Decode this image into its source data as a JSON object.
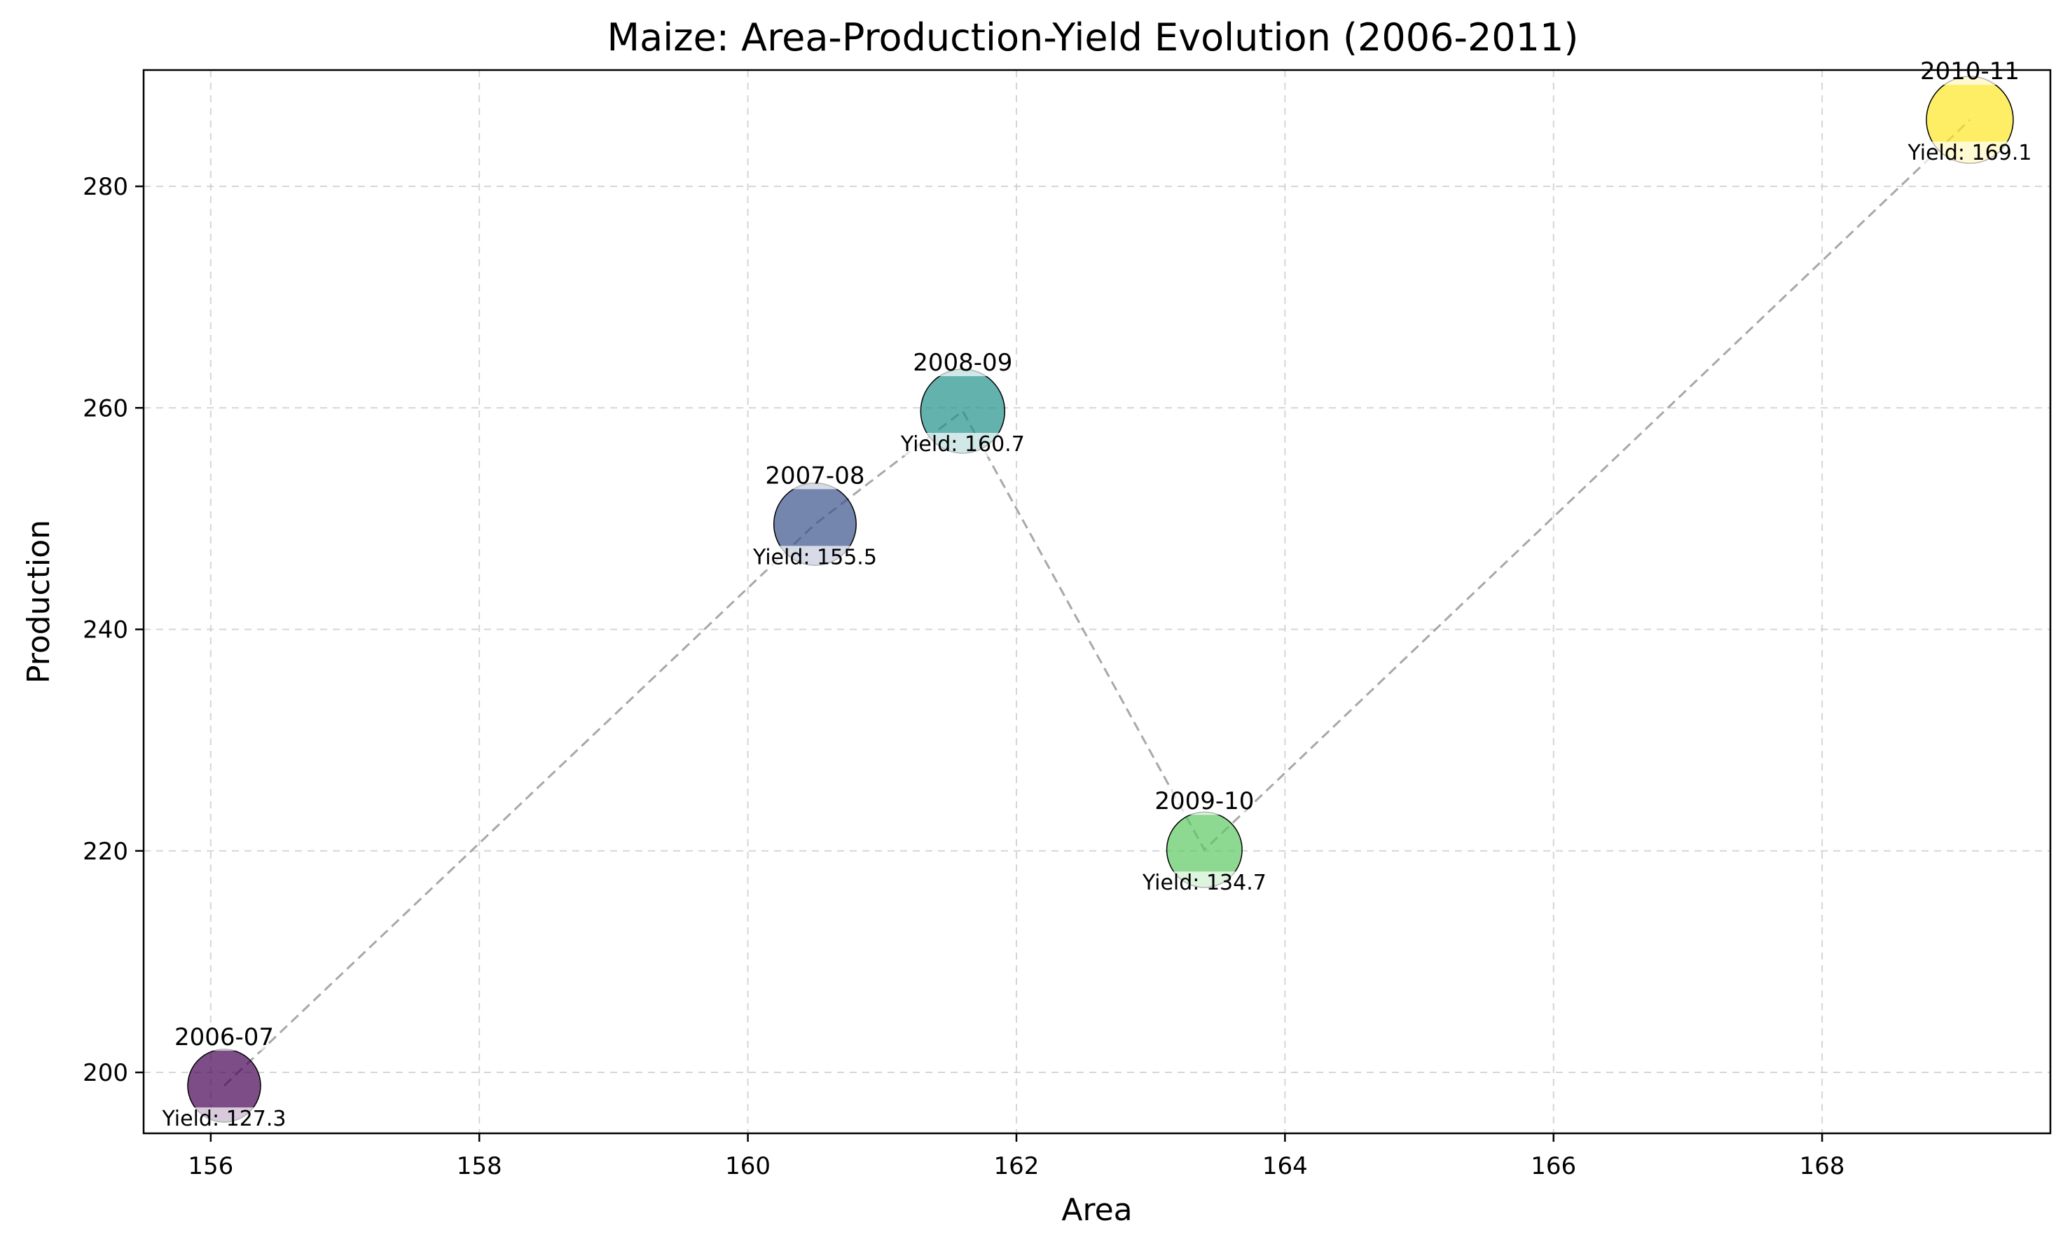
{
  "chart_data": {
    "type": "scatter",
    "title": "Maize: Area-Production-Yield Evolution (2006-2011)",
    "xlabel": "Area",
    "ylabel": "Production",
    "xlim": [
      155.5,
      169.7
    ],
    "ylim": [
      194.5,
      290.5
    ],
    "xticks": [
      156,
      158,
      160,
      162,
      164,
      166,
      168
    ],
    "yticks": [
      200,
      220,
      240,
      260,
      280
    ],
    "xtick_labels": [
      "156",
      "158",
      "160",
      "162",
      "164",
      "166",
      "168"
    ],
    "ytick_labels": [
      "200",
      "220",
      "240",
      "260",
      "280"
    ],
    "grid": true,
    "connecting_line": "dashed",
    "points": [
      {
        "label": "2006-07",
        "area": 156.1,
        "production": 198.8,
        "yield": 127.3,
        "yield_text": "Yield: 127.3",
        "color": "#440154"
      },
      {
        "label": "2007-08",
        "area": 160.5,
        "production": 249.5,
        "yield": 155.5,
        "yield_text": "Yield: 155.5",
        "color": "#3b528b"
      },
      {
        "label": "2008-09",
        "area": 161.6,
        "production": 259.7,
        "yield": 160.7,
        "yield_text": "Yield: 160.7",
        "color": "#21918c"
      },
      {
        "label": "2009-10",
        "area": 163.4,
        "production": 220.1,
        "yield": 134.7,
        "yield_text": "Yield: 134.7",
        "color": "#5ec962"
      },
      {
        "label": "2010-11",
        "area": 169.1,
        "production": 286.0,
        "yield": 169.1,
        "yield_text": "Yield: 169.1",
        "color": "#fde725"
      }
    ]
  }
}
